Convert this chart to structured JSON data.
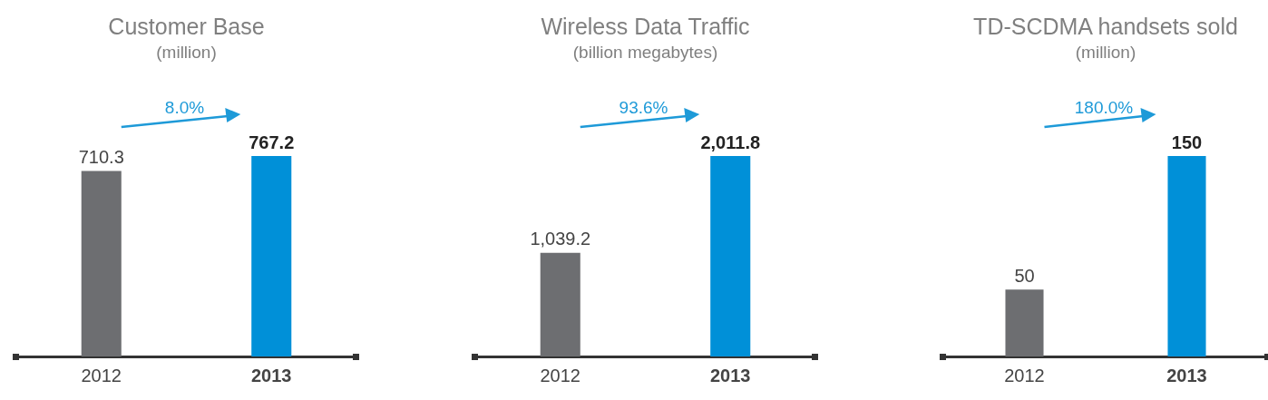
{
  "chart_data": [
    {
      "type": "bar",
      "title": "Customer Base",
      "subtitle": "(million)",
      "categories": [
        "2012",
        "2013"
      ],
      "values": [
        710.3,
        767.2
      ],
      "colors": [
        "#6d6e71",
        "#0090d8"
      ],
      "value_labels": [
        "710.3",
        "767.2"
      ],
      "annotations": [
        "8.0%"
      ]
    },
    {
      "type": "bar",
      "title": "Wireless Data Traffic",
      "subtitle": "(billion megabytes)",
      "categories": [
        "2012",
        "2013"
      ],
      "values": [
        1039.2,
        2011.8
      ],
      "colors": [
        "#6d6e71",
        "#0090d8"
      ],
      "value_labels": [
        "1,039.2",
        "2,011.8"
      ],
      "annotations": [
        "93.6%"
      ]
    },
    {
      "type": "bar",
      "title": "TD-SCDMA handsets sold",
      "subtitle": "(million)",
      "categories": [
        "2012",
        "2013"
      ],
      "values": [
        50,
        150
      ],
      "colors": [
        "#6d6e71",
        "#0090d8"
      ],
      "value_labels": [
        "50",
        "150"
      ],
      "annotations": [
        "180.0%"
      ]
    }
  ]
}
